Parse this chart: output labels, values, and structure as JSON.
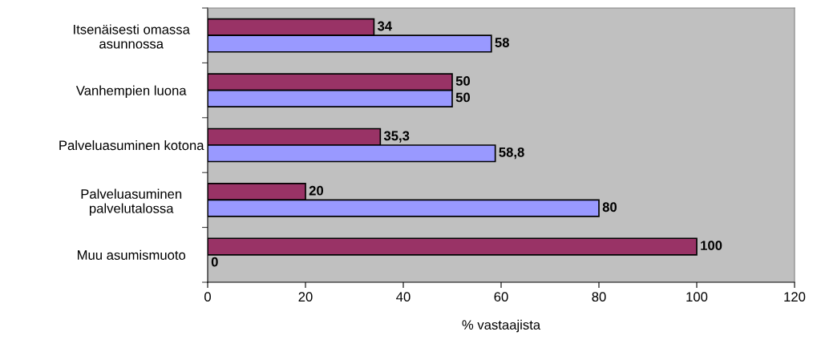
{
  "chart_data": {
    "type": "bar",
    "orientation": "horizontal",
    "xlabel": "% vastaajista",
    "categories": [
      "Itsenäisesti omassa\nasunnossa",
      "Vanhempien luona",
      "Palveluasuminen kotona",
      "Palveluasuminen\npalvelutalossa",
      "Muu asumismuoto"
    ],
    "series": [
      {
        "color": "#993366",
        "values": [
          34,
          50,
          35.3,
          20,
          100
        ],
        "value_labels": [
          "34",
          "50",
          "35,3",
          "20",
          "100"
        ]
      },
      {
        "color": "#9999ff",
        "values": [
          58,
          50,
          58.8,
          80,
          0
        ],
        "value_labels": [
          "58",
          "50",
          "58,8",
          "80",
          "0"
        ]
      }
    ],
    "xlim": [
      0,
      120
    ],
    "xticks": [
      0,
      20,
      40,
      60,
      80,
      100,
      120
    ],
    "grid": false,
    "legend": false
  }
}
